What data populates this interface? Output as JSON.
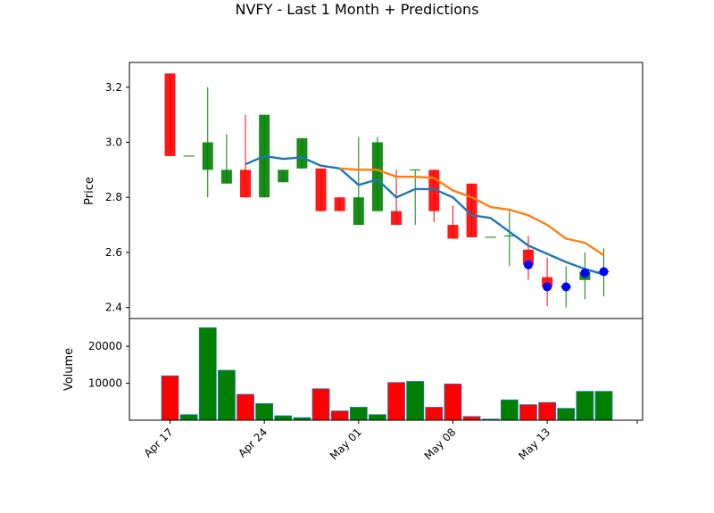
{
  "chart_data": {
    "type": "candlestick",
    "title": "NVFY - Last 1 Month + Predictions",
    "price_panel": {
      "ylabel": "Price",
      "ylim": [
        2.36,
        3.29
      ],
      "yticks": [
        "2.4",
        "2.6",
        "2.8",
        "3.0",
        "3.2"
      ],
      "ytick_values": [
        2.4,
        2.6,
        2.8,
        3.0,
        3.2
      ]
    },
    "volume_panel": {
      "ylabel": "Volume",
      "ylim": [
        0,
        27500
      ],
      "yticks": [
        "10000",
        "20000"
      ],
      "ytick_values": [
        10000,
        20000
      ]
    },
    "xticks": [
      {
        "label": "Apr 17",
        "date_index": 0
      },
      {
        "label": "Apr 24",
        "date_index": 5
      },
      {
        "label": "May 01",
        "date_index": 10
      },
      {
        "label": "May 08",
        "date_index": 15
      },
      {
        "label": "May 13",
        "date_index": 20
      }
    ],
    "candles": [
      {
        "open": 3.25,
        "close": 2.95,
        "high": 3.25,
        "low": 2.95,
        "volume": 12000
      },
      {
        "open": 2.95,
        "close": 2.95,
        "high": 2.95,
        "low": 2.95,
        "volume": 1500
      },
      {
        "open": 2.9,
        "close": 3.0,
        "high": 3.2,
        "low": 2.8,
        "volume": 25000
      },
      {
        "open": 2.85,
        "close": 2.9,
        "high": 3.03,
        "low": 2.85,
        "volume": 13500
      },
      {
        "open": 2.9,
        "close": 2.8,
        "high": 3.1,
        "low": 2.8,
        "volume": 7000
      },
      {
        "open": 2.8,
        "close": 3.1,
        "high": 3.1,
        "low": 2.8,
        "volume": 4500
      },
      {
        "open": 2.855,
        "close": 2.9,
        "high": 2.9,
        "low": 2.855,
        "volume": 1200
      },
      {
        "open": 2.905,
        "close": 3.015,
        "high": 3.015,
        "low": 2.905,
        "volume": 700
      },
      {
        "open": 2.905,
        "close": 2.75,
        "high": 2.905,
        "low": 2.75,
        "volume": 8500
      },
      {
        "open": 2.8,
        "close": 2.75,
        "high": 2.8,
        "low": 2.75,
        "volume": 2500
      },
      {
        "open": 2.7,
        "close": 2.8,
        "high": 3.02,
        "low": 2.7,
        "volume": 3500
      },
      {
        "open": 2.75,
        "close": 3.0,
        "high": 3.02,
        "low": 2.75,
        "volume": 1500
      },
      {
        "open": 2.75,
        "close": 2.7,
        "high": 2.9,
        "low": 2.7,
        "volume": 10200
      },
      {
        "open": 2.9,
        "close": 2.9,
        "high": 2.9,
        "low": 2.7,
        "volume": 10500
      },
      {
        "open": 2.9,
        "close": 2.75,
        "high": 2.9,
        "low": 2.71,
        "volume": 3500
      },
      {
        "open": 2.7,
        "close": 2.65,
        "high": 2.77,
        "low": 2.65,
        "volume": 9800
      },
      {
        "open": 2.85,
        "close": 2.655,
        "high": 2.85,
        "low": 2.655,
        "volume": 1000
      },
      {
        "open": 2.655,
        "close": 2.655,
        "high": 2.655,
        "low": 2.655,
        "volume": 300
      },
      {
        "open": 2.66,
        "close": 2.66,
        "high": 2.75,
        "low": 2.55,
        "volume": 5500
      },
      {
        "open": 2.61,
        "close": 2.555,
        "high": 2.66,
        "low": 2.5,
        "volume": 4200
      },
      {
        "open": 2.51,
        "close": 2.475,
        "high": 2.58,
        "low": 2.405,
        "volume": 4800
      },
      {
        "open": 2.475,
        "close": 2.475,
        "high": 2.55,
        "low": 2.4,
        "volume": 3200
      },
      {
        "open": 2.5,
        "close": 2.53,
        "high": 2.6,
        "low": 2.43,
        "volume": 7800
      },
      {
        "open": 2.53,
        "close": 2.53,
        "high": 2.615,
        "low": 2.44,
        "volume": 7800
      }
    ],
    "series": [
      {
        "color": "#1f77b4",
        "start_index": 4,
        "values": [
          2.92,
          2.95,
          2.94,
          2.945,
          2.915,
          2.905,
          2.845,
          2.865,
          2.8,
          2.83,
          2.83,
          2.8,
          2.735,
          2.725,
          2.675,
          2.625,
          2.595,
          2.565,
          2.54,
          2.52
        ]
      },
      {
        "color": "#ff7f0e",
        "start_index": 9,
        "values": [
          2.905,
          2.9,
          2.9,
          2.875,
          2.875,
          2.87,
          2.825,
          2.8,
          2.765,
          2.755,
          2.735,
          2.7,
          2.65,
          2.635,
          2.59
        ]
      }
    ],
    "prediction_markers": [
      {
        "index": 19,
        "value": 2.555
      },
      {
        "index": 20,
        "value": 2.475
      },
      {
        "index": 21,
        "value": 2.475
      },
      {
        "index": 22,
        "value": 2.525
      },
      {
        "index": 23,
        "value": 2.53
      }
    ],
    "colors": {
      "up": "#008000",
      "down": "#ff0000",
      "marker": "#0000ff"
    }
  }
}
